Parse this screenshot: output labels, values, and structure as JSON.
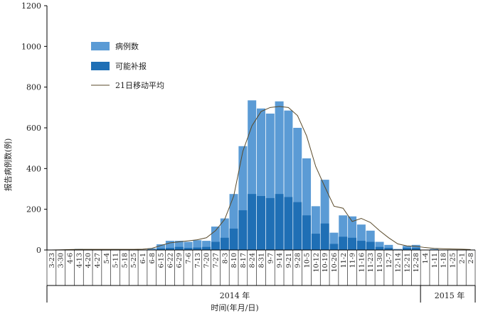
{
  "chart_data": {
    "type": "bar",
    "ylabel": "报告病例数(例)",
    "xlabel": "时间(年月/日)",
    "ylim": [
      0,
      1200
    ],
    "yticks": [
      0,
      200,
      400,
      600,
      800,
      1000,
      1200
    ],
    "categories": [
      "3-23",
      "3-30",
      "4-6",
      "4-13",
      "4-20",
      "4-27",
      "5-4",
      "5-11",
      "5-18",
      "5-25",
      "6-1",
      "6-8",
      "6-15",
      "6-22",
      "6-29",
      "7-6",
      "7-13",
      "7-20",
      "7-27",
      "8-3",
      "8-10",
      "8-17",
      "8-24",
      "8-31",
      "9-7",
      "9-14",
      "9-21",
      "9-28",
      "10-5",
      "10-12",
      "10-19",
      "10-26",
      "11-2",
      "11-9",
      "11-16",
      "11-23",
      "11-30",
      "12-7",
      "12-14",
      "12-21",
      "12-28",
      "1-4",
      "1-11",
      "1-18",
      "1-25",
      "2-1",
      "2-8"
    ],
    "series": [
      {
        "name": "病例数",
        "color": "#5b9bd5",
        "values": [
          0,
          0,
          3,
          5,
          4,
          0,
          0,
          4,
          3,
          3,
          0,
          8,
          28,
          45,
          45,
          40,
          48,
          45,
          115,
          155,
          275,
          510,
          735,
          695,
          670,
          730,
          685,
          600,
          450,
          215,
          345,
          85,
          170,
          165,
          125,
          95,
          40,
          25,
          5,
          20,
          25,
          0,
          5,
          0,
          0,
          0,
          0
        ]
      },
      {
        "name": "可能补报",
        "color": "#1f6fb5",
        "values": [
          0,
          0,
          0,
          0,
          0,
          0,
          0,
          0,
          0,
          0,
          0,
          0,
          8,
          10,
          15,
          10,
          12,
          15,
          40,
          60,
          105,
          195,
          275,
          265,
          255,
          275,
          260,
          235,
          170,
          80,
          130,
          30,
          65,
          60,
          45,
          40,
          15,
          10,
          0,
          10,
          10,
          0,
          0,
          0,
          0,
          0,
          0
        ]
      }
    ],
    "moving_average": {
      "name": "21日移动平均",
      "color": "#5a4a2a",
      "values": [
        0,
        1,
        2,
        3,
        3,
        3,
        3,
        3,
        3,
        3,
        4,
        8,
        22,
        35,
        40,
        45,
        50,
        60,
        95,
        150,
        265,
        485,
        610,
        680,
        700,
        705,
        700,
        660,
        560,
        410,
        310,
        215,
        205,
        140,
        155,
        135,
        95,
        60,
        30,
        20,
        18,
        12,
        8,
        6,
        5,
        4,
        2
      ]
    },
    "years": [
      {
        "label": "2014 年"
      },
      {
        "label": "2015 年"
      }
    ],
    "legend_position": "top-left",
    "grid": false
  }
}
